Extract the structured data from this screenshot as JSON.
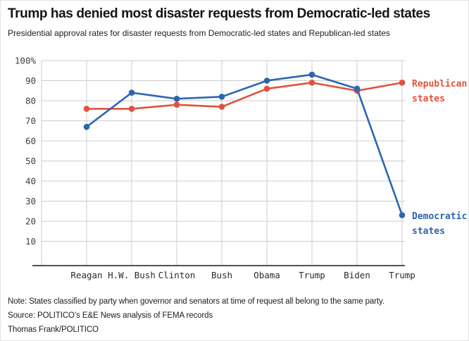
{
  "header": {
    "title": "Trump has denied most disaster requests from Democratic-led states",
    "subtitle": "Presidential approval rates for disaster requests from Democratic-led states and Republican-led states"
  },
  "chart_data": {
    "type": "line",
    "title": "Trump has denied most disaster requests from Democratic-led states",
    "subtitle": "Presidential approval rates for disaster requests from Democratic-led states and Republican-led states",
    "categories": [
      "Reagan",
      "H.W. Bush",
      "Clinton",
      "Bush",
      "Obama",
      "Trump",
      "Biden",
      "Trump"
    ],
    "series": [
      {
        "name": "Republican states",
        "label_lines": [
          "Republican",
          "states"
        ],
        "color": "#e0523e",
        "values": [
          76,
          76,
          78,
          77,
          86,
          89,
          85,
          89
        ]
      },
      {
        "name": "Democratic states",
        "label_lines": [
          "Democratic",
          "states"
        ],
        "color": "#2d66af",
        "values": [
          67,
          84,
          81,
          82,
          90,
          93,
          86,
          23
        ]
      }
    ],
    "xlabel": "",
    "ylabel": "",
    "ylim": [
      0,
      100
    ],
    "yticks": [
      100,
      90,
      80,
      70,
      60,
      50,
      40,
      30,
      20,
      10
    ],
    "ytick_labels": [
      "100%",
      "90",
      "80",
      "70",
      "60",
      "50",
      "40",
      "30",
      "20",
      "10"
    ],
    "grid": true,
    "legend_position": "right of line ends",
    "gridline_color": "#cccccc",
    "axis_line_color": "#1a1a1a"
  },
  "footer": {
    "note": "Note: States classified by party when governor and senators at time of request all belong to the same party.",
    "source": "Source: POLITICO’s E&E News analysis of FEMA records",
    "credit": "Thomas Frank/POLITICO"
  }
}
